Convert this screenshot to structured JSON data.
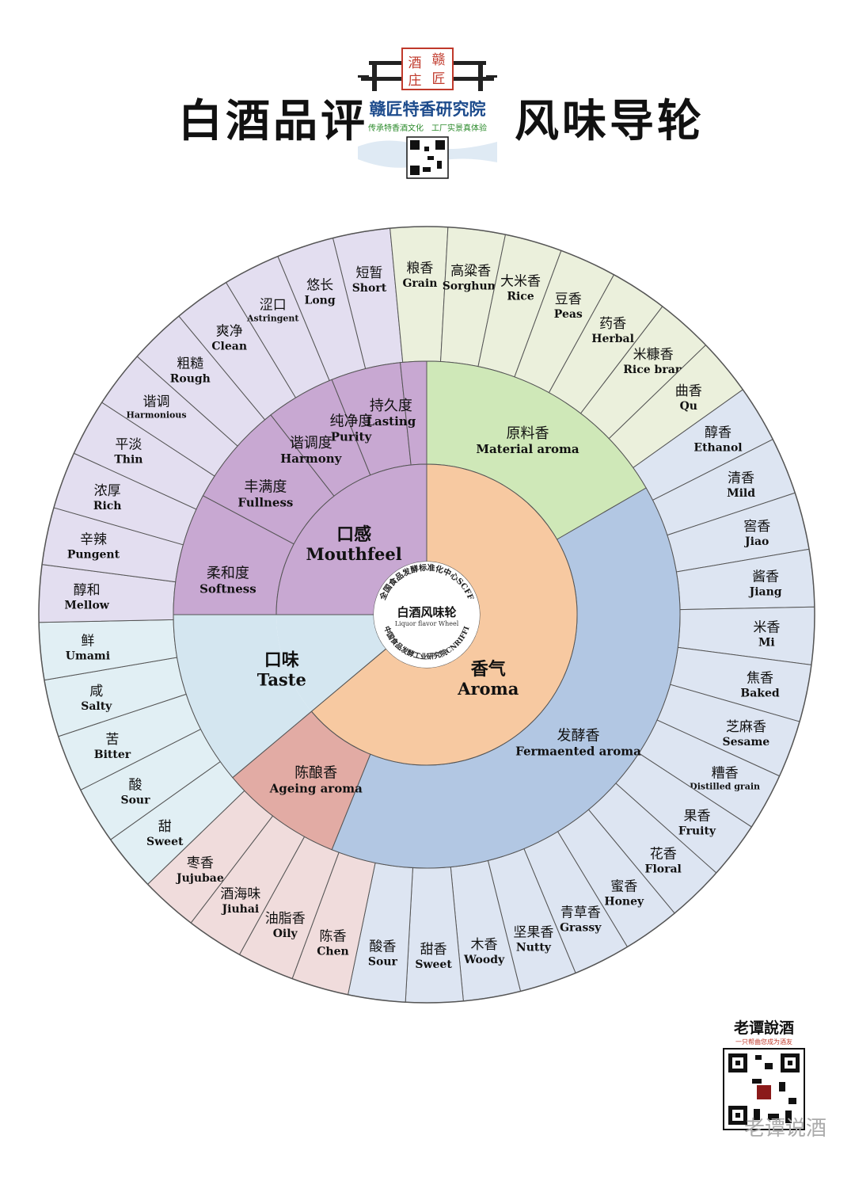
{
  "header": {
    "title_left": "白酒品评",
    "title_right": "风味导轮",
    "logo_stamp_1": "酒",
    "logo_stamp_2": "赣",
    "logo_stamp_3": "庄",
    "logo_stamp_4": "匠",
    "logo_name": "赣匠特香研究院",
    "logo_slogan": "传承特香酒文化　工厂实景真体验"
  },
  "center": {
    "ring_top": "全国食品发酵标准化中心SCFF",
    "ring_bottom": "中国食品发酵工业研究院CNRIFFI",
    "title_zh": "白酒风味轮",
    "title_en": "Liquor flavor Wheel"
  },
  "colors": {
    "mouthfeel": "#c8a8d2",
    "mouthfeel_outer": "#e3def0",
    "material": "#cfe8b8",
    "material_outer": "#ebf0dc",
    "aroma": "#f7c9a1",
    "fermented": "#b2c7e3",
    "fermented_outer": "#dde5f2",
    "ageing": "#e2aba4",
    "ageing_outer": "#f0dcdc",
    "taste": "#d4e6f0",
    "taste_outer": "#e1eff4"
  },
  "wheel": {
    "l1": [
      {
        "zh": "口感",
        "en": "Mouthfeel"
      },
      {
        "zh": "口味",
        "en": "Taste"
      },
      {
        "zh": "香气",
        "en": "Aroma"
      }
    ],
    "l2": [
      {
        "zh": "柔和度",
        "en": "Softness"
      },
      {
        "zh": "丰满度",
        "en": "Fullness"
      },
      {
        "zh": "谐调度",
        "en": "Harmony"
      },
      {
        "zh": "纯净度",
        "en": "Purity"
      },
      {
        "zh": "持久度",
        "en": "Lasting"
      },
      {
        "zh": "原料香",
        "en": "Material  aroma"
      },
      {
        "zh": "发酵香",
        "en": "Fermaented  aroma"
      },
      {
        "zh": "陈酿香",
        "en": "Ageing  aroma"
      }
    ],
    "outer": [
      {
        "zh": "短暂",
        "en": "Short"
      },
      {
        "zh": "粮香",
        "en": "Grain"
      },
      {
        "zh": "高粱香",
        "en": "Sorghum"
      },
      {
        "zh": "大米香",
        "en": "Rice"
      },
      {
        "zh": "豆香",
        "en": "Peas"
      },
      {
        "zh": "药香",
        "en": "Herbal"
      },
      {
        "zh": "米糠香",
        "en": "Rice bran"
      },
      {
        "zh": "曲香",
        "en": "Qu"
      },
      {
        "zh": "醇香",
        "en": "Ethanol"
      },
      {
        "zh": "清香",
        "en": "Mild"
      },
      {
        "zh": "窖香",
        "en": "Jiao"
      },
      {
        "zh": "酱香",
        "en": "Jiang"
      },
      {
        "zh": "米香",
        "en": "Mi"
      },
      {
        "zh": "焦香",
        "en": "Baked"
      },
      {
        "zh": "芝麻香",
        "en": "Sesame"
      },
      {
        "zh": "糟香",
        "en": "Distilled grain"
      },
      {
        "zh": "果香",
        "en": "Fruity"
      },
      {
        "zh": "花香",
        "en": "Floral"
      },
      {
        "zh": "蜜香",
        "en": "Honey"
      },
      {
        "zh": "青草香",
        "en": "Grassy"
      },
      {
        "zh": "坚果香",
        "en": "Nutty"
      },
      {
        "zh": "木香",
        "en": "Woody"
      },
      {
        "zh": "甜香",
        "en": "Sweet"
      },
      {
        "zh": "酸香",
        "en": "Sour"
      },
      {
        "zh": "陈香",
        "en": "Chen"
      },
      {
        "zh": "油脂香",
        "en": "Oily"
      },
      {
        "zh": "酒海味",
        "en": "Jiuhai"
      },
      {
        "zh": "枣香",
        "en": "Jujubae"
      },
      {
        "zh": "甜",
        "en": "Sweet"
      },
      {
        "zh": "酸",
        "en": "Sour"
      },
      {
        "zh": "苦",
        "en": "Bitter"
      },
      {
        "zh": "咸",
        "en": "Salty"
      },
      {
        "zh": "鲜",
        "en": "Umami"
      },
      {
        "zh": "醇和",
        "en": "Mellow"
      },
      {
        "zh": "辛辣",
        "en": "Pungent"
      },
      {
        "zh": "浓厚",
        "en": "Rich"
      },
      {
        "zh": "平淡",
        "en": "Thin"
      },
      {
        "zh": "谐调",
        "en": "Harmonious"
      },
      {
        "zh": "粗糙",
        "en": "Rough"
      },
      {
        "zh": "爽净",
        "en": "Clean"
      },
      {
        "zh": "涩口",
        "en": "Astringent"
      },
      {
        "zh": "悠长",
        "en": "Long"
      }
    ]
  },
  "brand": {
    "name": "老谭說酒",
    "tagline": "一只帮曲您成为酒友"
  },
  "watermark": "老谭说酒"
}
